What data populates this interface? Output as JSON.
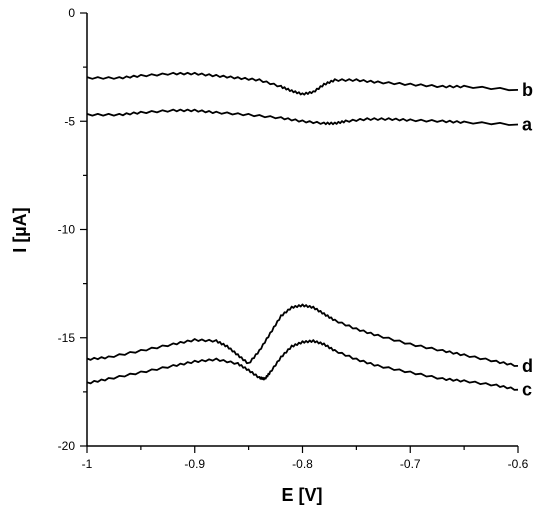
{
  "chart_data": {
    "type": "line",
    "title": "",
    "xlabel": "E [V]",
    "ylabel": "I [µA]",
    "xlim": [
      -1.0,
      -0.6
    ],
    "ylim": [
      -20,
      0
    ],
    "xticks": [
      -1.0,
      -0.9,
      -0.8,
      -0.7,
      -0.6
    ],
    "xtick_labels": [
      "-1",
      "-0.9",
      "-0.8",
      "-0.7",
      "-0.6"
    ],
    "yticks": [
      0,
      -5,
      -10,
      -15,
      -20
    ],
    "ytick_labels": [
      "0",
      "-5",
      "-10",
      "-15",
      "-20"
    ],
    "grid": false,
    "series": [
      {
        "name": "b",
        "x": [
          -1.0,
          -0.97,
          -0.95,
          -0.92,
          -0.9,
          -0.88,
          -0.86,
          -0.84,
          -0.82,
          -0.81,
          -0.8,
          -0.79,
          -0.78,
          -0.77,
          -0.75,
          -0.73,
          -0.7,
          -0.67,
          -0.65,
          -0.6
        ],
        "y": [
          -3.0,
          -3.0,
          -2.9,
          -2.8,
          -2.8,
          -2.9,
          -3.0,
          -3.1,
          -3.4,
          -3.6,
          -3.75,
          -3.65,
          -3.3,
          -3.1,
          -3.1,
          -3.2,
          -3.3,
          -3.4,
          -3.4,
          -3.55
        ]
      },
      {
        "name": "a",
        "x": [
          -1.0,
          -0.97,
          -0.95,
          -0.92,
          -0.9,
          -0.88,
          -0.85,
          -0.82,
          -0.8,
          -0.78,
          -0.77,
          -0.76,
          -0.74,
          -0.72,
          -0.7,
          -0.67,
          -0.65,
          -0.6
        ],
        "y": [
          -4.7,
          -4.7,
          -4.6,
          -4.5,
          -4.5,
          -4.6,
          -4.7,
          -4.85,
          -5.0,
          -5.1,
          -5.1,
          -5.0,
          -4.9,
          -4.9,
          -4.95,
          -5.0,
          -5.05,
          -5.15
        ]
      },
      {
        "name": "d",
        "x": [
          -1.0,
          -0.98,
          -0.95,
          -0.92,
          -0.9,
          -0.88,
          -0.87,
          -0.86,
          -0.85,
          -0.84,
          -0.83,
          -0.82,
          -0.81,
          -0.8,
          -0.79,
          -0.78,
          -0.77,
          -0.75,
          -0.73,
          -0.7,
          -0.67,
          -0.65,
          -0.62,
          -0.6
        ],
        "y": [
          -16.0,
          -15.9,
          -15.6,
          -15.3,
          -15.1,
          -15.15,
          -15.4,
          -15.8,
          -16.2,
          -15.6,
          -14.8,
          -14.0,
          -13.6,
          -13.5,
          -13.6,
          -13.9,
          -14.2,
          -14.6,
          -14.9,
          -15.3,
          -15.6,
          -15.8,
          -16.1,
          -16.3
        ]
      },
      {
        "name": "c",
        "x": [
          -1.0,
          -0.98,
          -0.95,
          -0.92,
          -0.9,
          -0.88,
          -0.86,
          -0.85,
          -0.84,
          -0.835,
          -0.83,
          -0.82,
          -0.81,
          -0.8,
          -0.79,
          -0.78,
          -0.77,
          -0.75,
          -0.73,
          -0.7,
          -0.67,
          -0.65,
          -0.62,
          -0.6
        ],
        "y": [
          -17.1,
          -16.9,
          -16.6,
          -16.3,
          -16.1,
          -16.0,
          -16.2,
          -16.5,
          -16.85,
          -16.9,
          -16.6,
          -15.9,
          -15.4,
          -15.2,
          -15.15,
          -15.3,
          -15.6,
          -16.0,
          -16.3,
          -16.6,
          -16.9,
          -17.0,
          -17.2,
          -17.4
        ]
      }
    ]
  }
}
